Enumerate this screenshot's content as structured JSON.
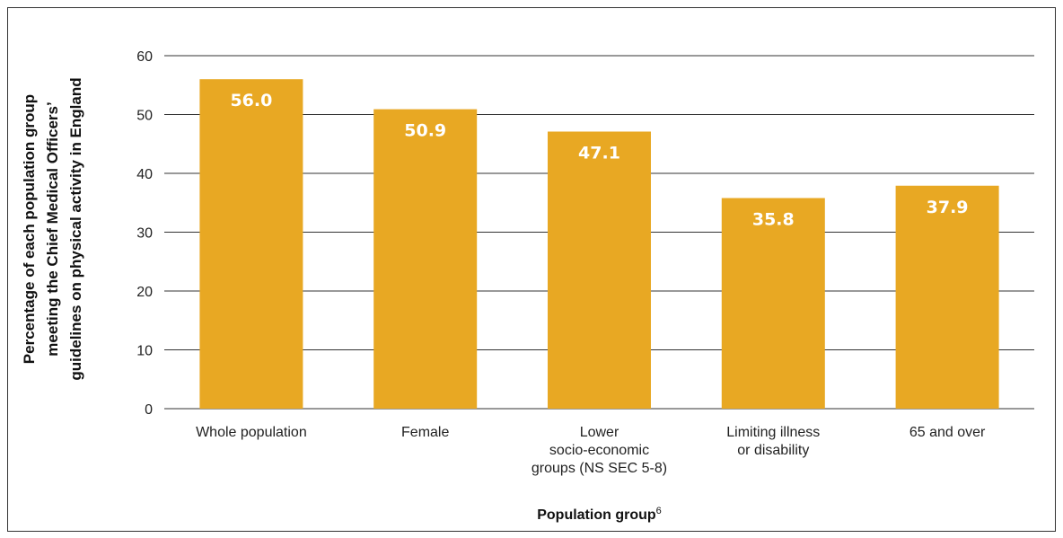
{
  "chart_data": {
    "type": "bar",
    "categories": [
      [
        "Whole population"
      ],
      [
        "Female"
      ],
      [
        "Lower",
        "socio-economic",
        "groups (NS SEC 5-8)"
      ],
      [
        "Limiting illness",
        "or disability"
      ],
      [
        "65 and over"
      ]
    ],
    "values": [
      56.0,
      50.9,
      47.1,
      35.8,
      37.9
    ],
    "data_labels": [
      "56.0",
      "50.9",
      "47.1",
      "35.8",
      "37.9"
    ],
    "ylabel_lines": [
      "Percentage of each population group",
      "meeting the Chief Medical Officers’",
      "guidelines on physical activity in England"
    ],
    "xlabel": "Population group",
    "xlabel_footnote": "6",
    "ylim": [
      0,
      60
    ],
    "yticks": [
      0,
      10,
      20,
      30,
      40,
      50,
      60
    ],
    "grid": true,
    "bar_color": "#E8A823",
    "grid_color": "#333333"
  }
}
